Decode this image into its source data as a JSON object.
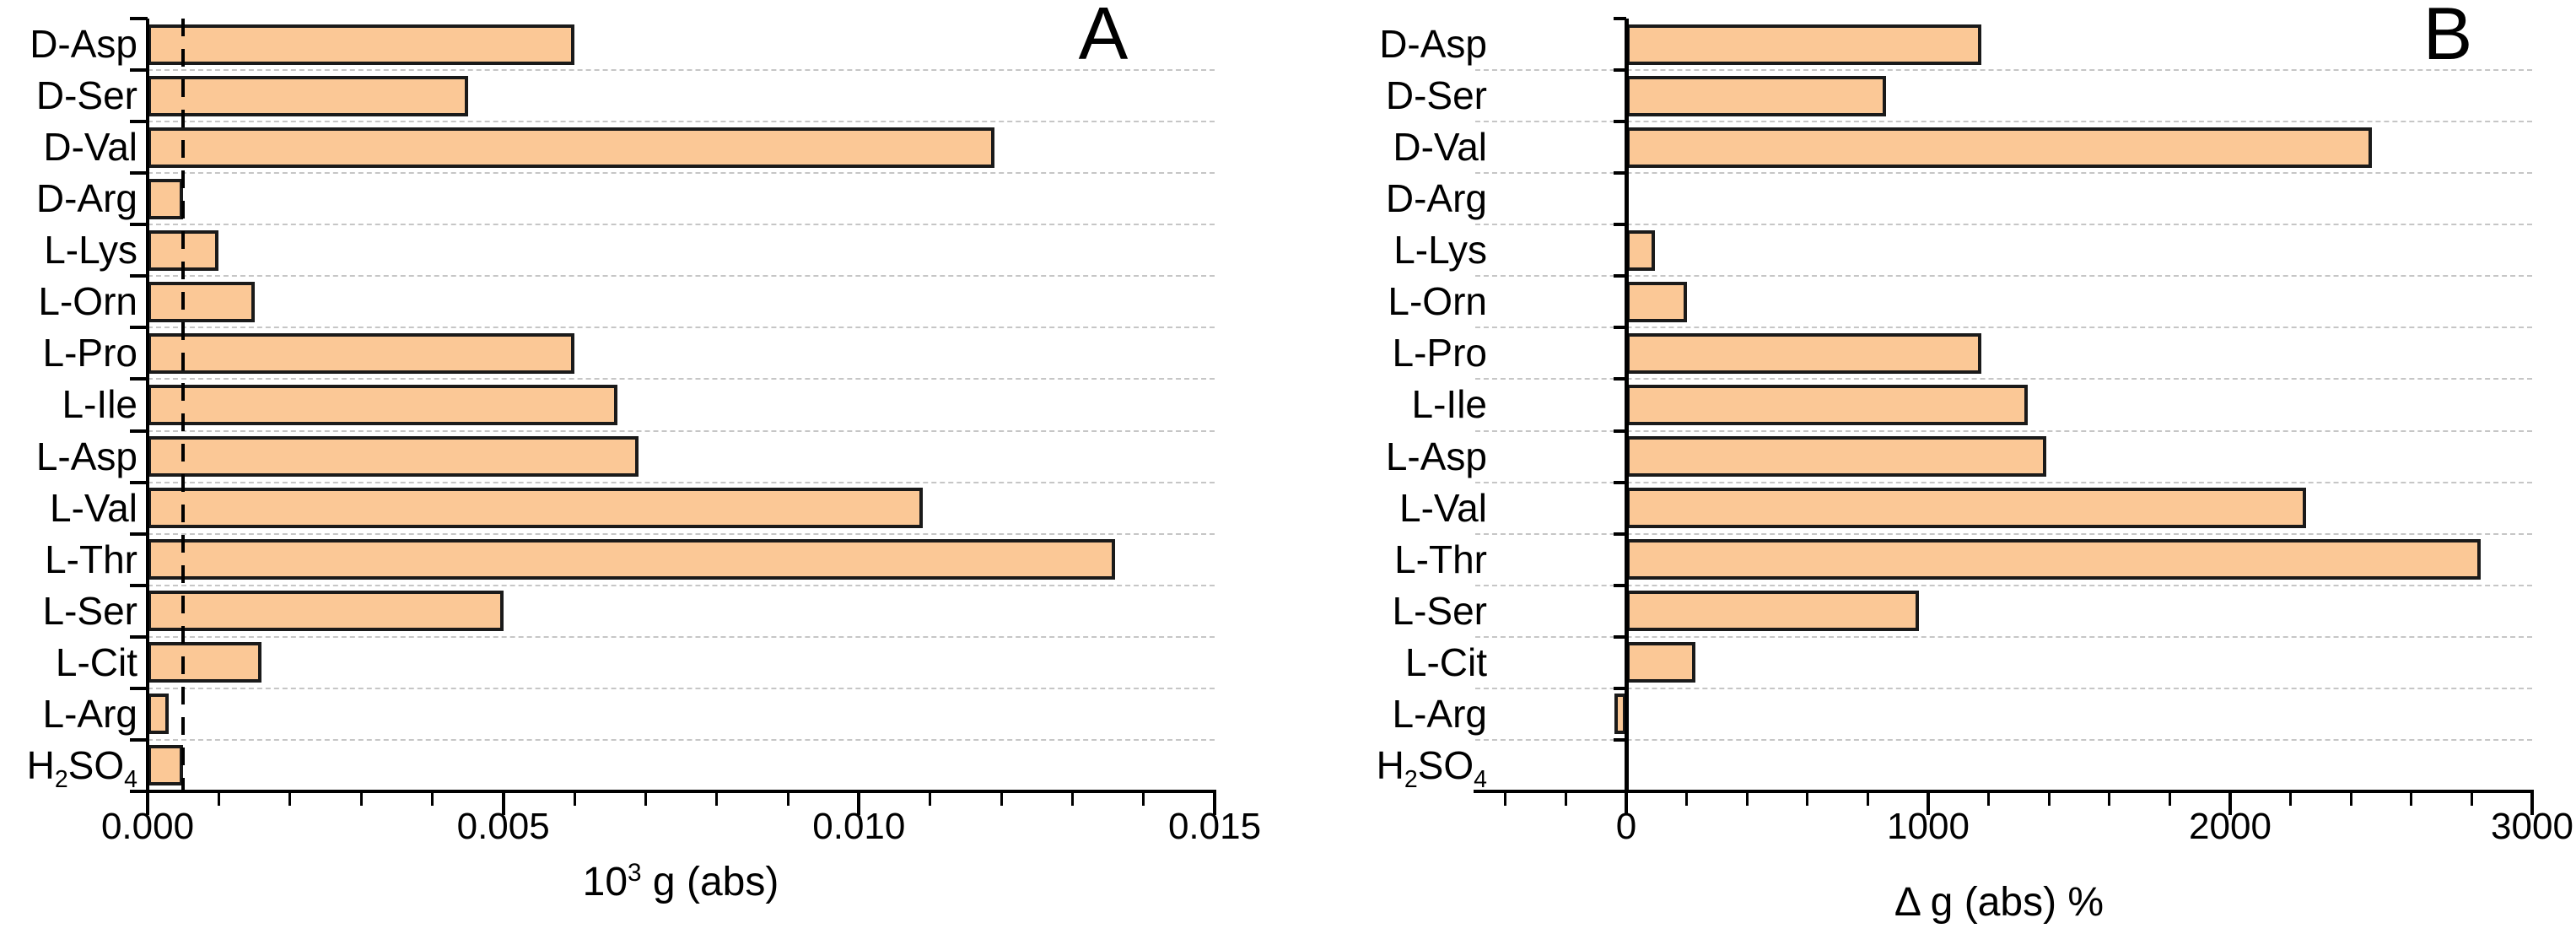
{
  "colors": {
    "bar_fill": "#FBC896",
    "bar_border": "#1a1a1a",
    "axis": "#000000",
    "gridline": "#c6c6c6",
    "reference_line": "#000000"
  },
  "chart_data": [
    {
      "type": "bar",
      "orientation": "horizontal",
      "panel_label": "A",
      "xlabel": "10³ g (abs)",
      "categories": [
        "D-Asp",
        "D-Ser",
        "D-Val",
        "D-Arg",
        "L-Lys",
        "L-Orn",
        "L-Pro",
        "L-Ile",
        "L-Asp",
        "L-Val",
        "L-Thr",
        "L-Ser",
        "L-Cit",
        "L-Arg",
        "H₂SO₄"
      ],
      "values": [
        0.006,
        0.0045,
        0.0119,
        0.0005,
        0.001,
        0.0015,
        0.006,
        0.0066,
        0.0069,
        0.0109,
        0.0136,
        0.005,
        0.0016,
        0.0003,
        0.0005
      ],
      "xlim": [
        0,
        0.015
      ],
      "x_major_ticks": [
        0,
        0.005,
        0.01,
        0.015
      ],
      "x_major_tick_labels": [
        "0.000",
        "0.005",
        "0.010",
        "0.015"
      ],
      "x_minor_tick_step": 0.001,
      "reference_dashed_line_x": 0.0005,
      "grid": "horizontal-dotted",
      "legend": "none",
      "bar_fill": "#FBC896",
      "bar_border": "#1a1a1a"
    },
    {
      "type": "bar",
      "orientation": "horizontal",
      "panel_label": "B",
      "xlabel": "Δ g (abs) %",
      "categories": [
        "D-Asp",
        "D-Ser",
        "D-Val",
        "D-Arg",
        "L-Lys",
        "L-Orn",
        "L-Pro",
        "L-Ile",
        "L-Asp",
        "L-Val",
        "L-Thr",
        "L-Ser",
        "L-Cit",
        "L-Arg",
        "H₂SO₄"
      ],
      "values": [
        1175,
        860,
        2470,
        0,
        95,
        200,
        1175,
        1330,
        1390,
        2250,
        2830,
        970,
        230,
        -40,
        0
      ],
      "xlim": [
        -500,
        3000
      ],
      "x_major_ticks": [
        0,
        1000,
        2000,
        3000
      ],
      "x_major_tick_labels": [
        "0",
        "1000",
        "2000",
        "3000"
      ],
      "x_minor_tick_step": 200,
      "reference_dashed_line_x": null,
      "grid": "horizontal-dotted",
      "legend": "none",
      "bar_fill": "#FBC896",
      "bar_border": "#1a1a1a"
    }
  ]
}
